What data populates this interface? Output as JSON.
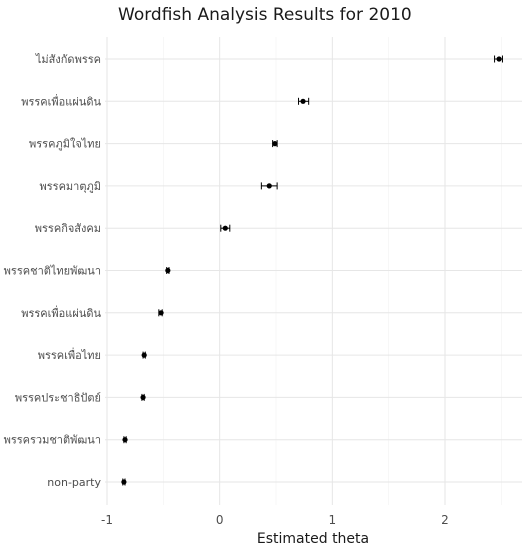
{
  "chart_data": {
    "type": "scatter",
    "title": "Wordfish Analysis Results for 2010",
    "xlabel": "Estimated theta",
    "ylabel": "",
    "xlim": [
      -1.0,
      2.65
    ],
    "xticks": [
      "-1",
      "0",
      "1",
      "2"
    ],
    "xtick_values": [
      -1,
      0,
      1,
      2
    ],
    "grid": true,
    "error_bars": true,
    "categories": [
      "ไม่สังกัดพรรค",
      "พรรคเพื่อแผ่นดิน",
      "พรรคภูมิใจไทย",
      "พรรคมาตุภูมิ",
      "พรรคกิจสังคม",
      "พรรคชาติไทยพัฒนา",
      "พรรคเพื่อแผ่นดิน",
      "พรรคเพื่อไทย",
      "พรรคประชาธิปัตย์",
      "พรรครวมชาติพัฒนา",
      "non-party"
    ],
    "values": [
      2.48,
      0.74,
      0.49,
      0.44,
      0.05,
      -0.46,
      -0.52,
      -0.67,
      -0.68,
      -0.84,
      -0.85
    ],
    "lower": [
      2.44,
      0.7,
      0.47,
      0.37,
      0.01,
      -0.47,
      -0.54,
      -0.68,
      -0.69,
      -0.85,
      -0.86
    ],
    "upper": [
      2.51,
      0.79,
      0.51,
      0.51,
      0.09,
      -0.45,
      -0.51,
      -0.66,
      -0.67,
      -0.83,
      -0.84
    ]
  }
}
